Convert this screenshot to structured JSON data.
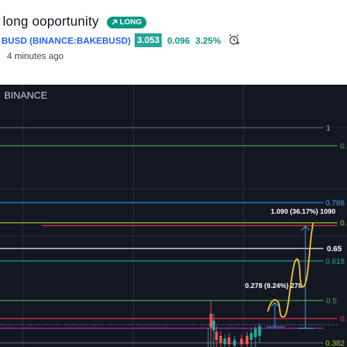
{
  "idea": {
    "title": "long ooportunity",
    "badge": "LONG",
    "timestamp": "4 minutes ago"
  },
  "symbol": {
    "label": "BUSD (BINANCE:BAKEBUSD)",
    "price": "3.053",
    "change": "0.096",
    "change_pct": "3.25%"
  },
  "chart": {
    "exchange": "BINANCE",
    "fib_labels": {
      "l1": "1",
      "l0886": "0.",
      "l0786": "0.786",
      "l071": "0.",
      "l065": "0.65",
      "l0618": "0.618",
      "l05": "0.5",
      "l041": "0.",
      "l0382": "0.382"
    },
    "measure_big": "1.090 (36.17%) 1090",
    "measure_small": "0.278 (9.24%) 278",
    "colors": {
      "background": "#131722",
      "long_badge": "#089981",
      "price_box": "#26a69a",
      "symbol_link": "#2962ff",
      "fib_green": "#4caf50",
      "fib_blue": "#2196f3",
      "fib_red": "#f23645",
      "fib_yellowgreen": "#a5d63c",
      "fib_teal": "#26a69a",
      "fib_purple": "#9c27b0",
      "path_yellow": "#fbc02d",
      "measure_blue": "#42a5f5"
    }
  }
}
